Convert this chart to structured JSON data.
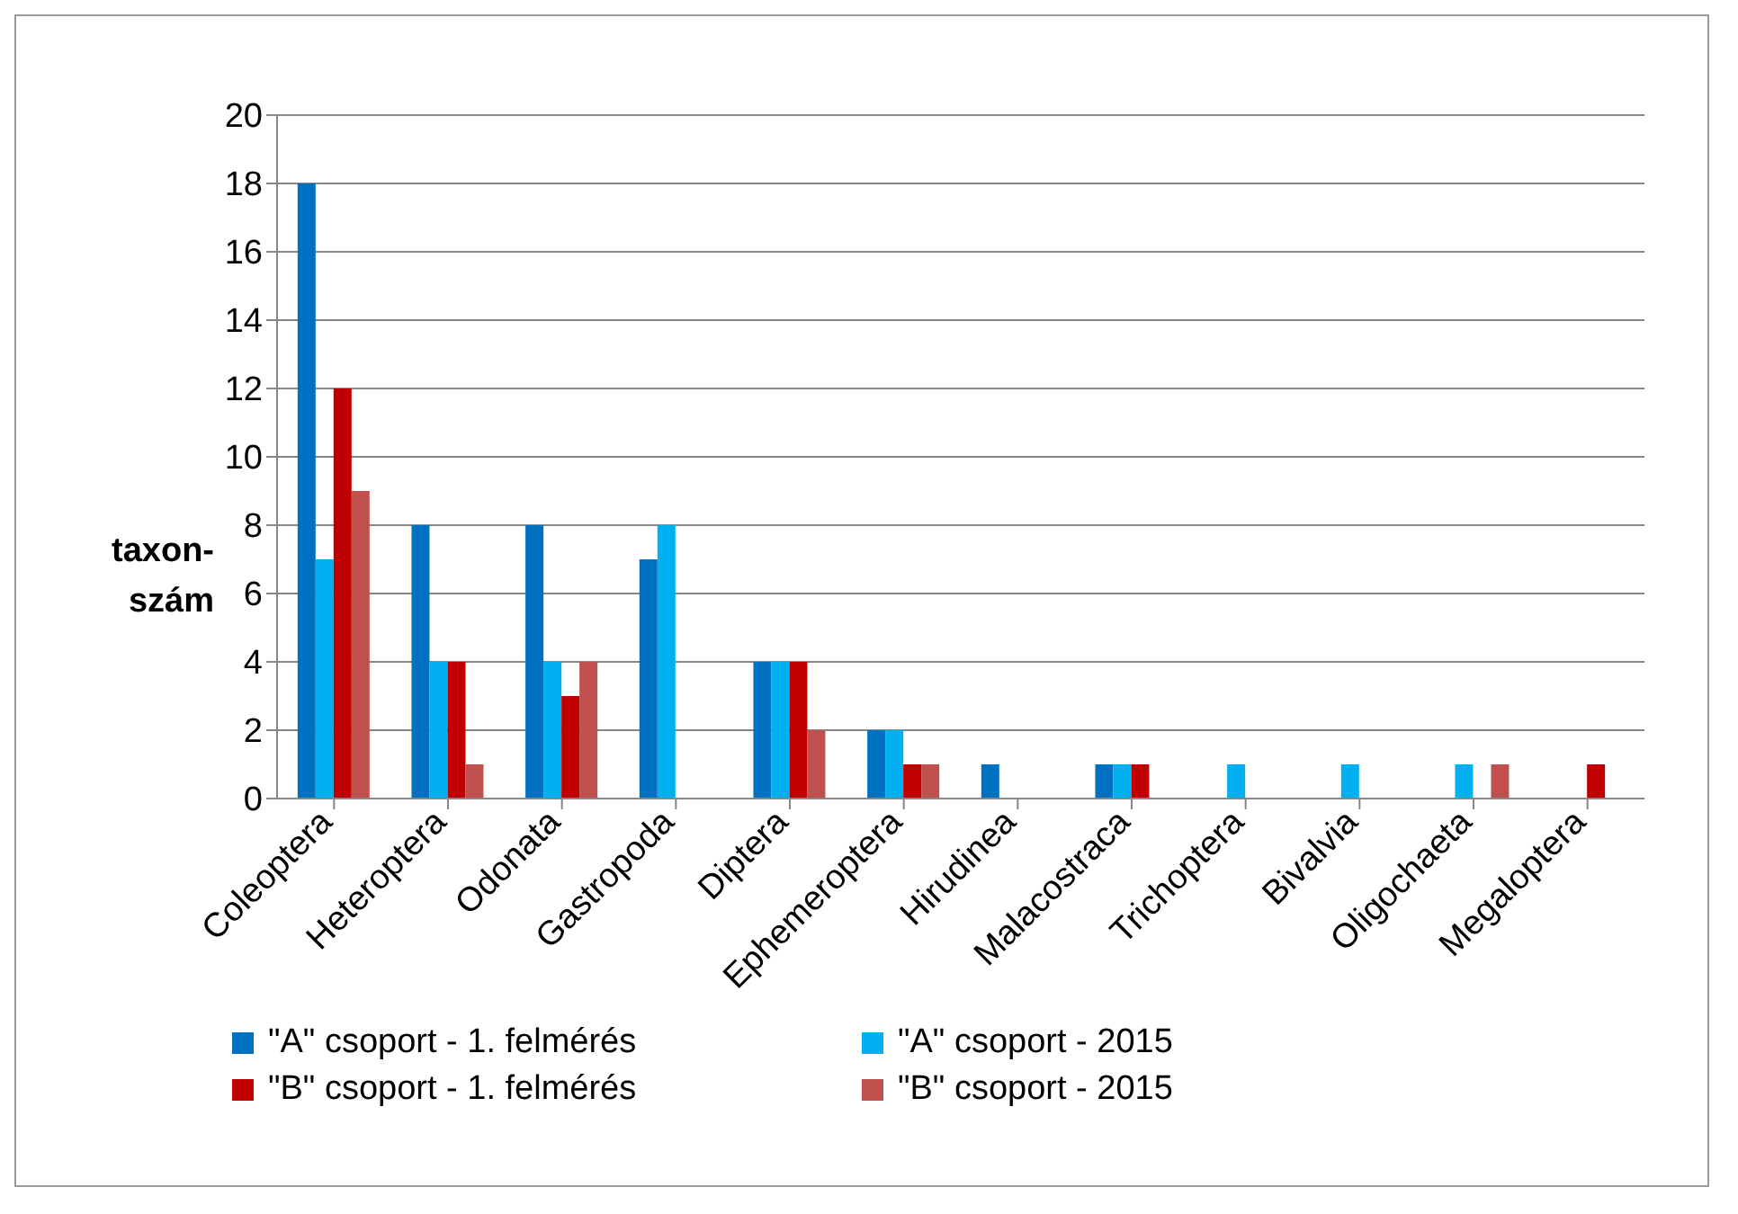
{
  "chart_data": {
    "type": "bar",
    "ylabel": "taxon-szám",
    "categories": [
      "Coleoptera",
      "Heteroptera",
      "Odonata",
      "Gastropoda",
      "Diptera",
      "Ephemeroptera",
      "Hirudinea",
      "Malacostraca",
      "Trichoptera",
      "Bivalvia",
      "Oligochaeta",
      "Megaloptera"
    ],
    "series": [
      {
        "name": "\"A\" csoport - 1. felmérés",
        "color": "#0070c0",
        "values": [
          18,
          8,
          8,
          7,
          4,
          2,
          1,
          1,
          0,
          0,
          0,
          0
        ]
      },
      {
        "name": "\"A\" csoport - 2015",
        "color": "#00b0f0",
        "values": [
          7,
          4,
          4,
          8,
          4,
          2,
          0,
          1,
          1,
          1,
          1,
          0
        ]
      },
      {
        "name": "\"B\" csoport - 1. felmérés",
        "color": "#c00000",
        "values": [
          12,
          4,
          3,
          0,
          4,
          1,
          0,
          1,
          0,
          0,
          0,
          1
        ]
      },
      {
        "name": "\"B\" csoport - 2015",
        "color": "#c0504d",
        "values": [
          9,
          1,
          4,
          0,
          2,
          1,
          0,
          0,
          0,
          0,
          1,
          0
        ]
      }
    ],
    "ylim": [
      0,
      20
    ],
    "yticks": [
      0,
      2,
      4,
      6,
      8,
      10,
      12,
      14,
      16,
      18,
      20
    ],
    "grid": "y",
    "legend": "bottom"
  }
}
